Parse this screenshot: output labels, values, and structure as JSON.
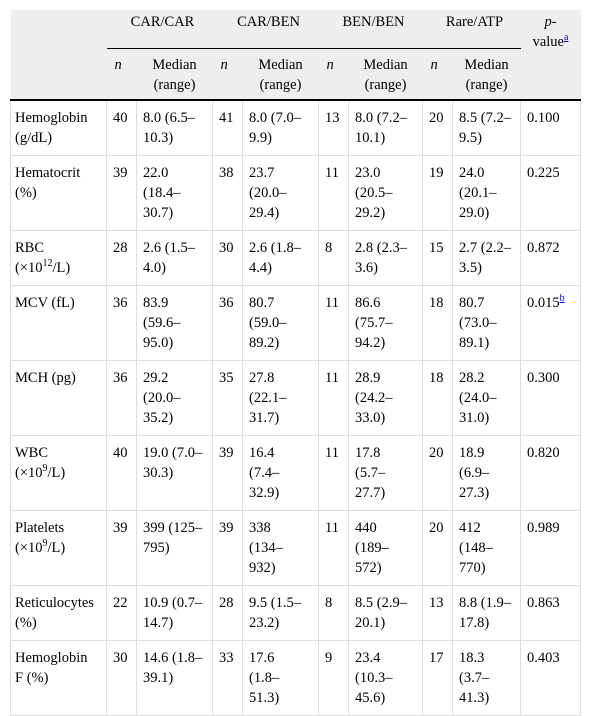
{
  "table": {
    "groups": [
      "CAR/CAR",
      "CAR/BEN",
      "BEN/BEN",
      "Rare/ATP"
    ],
    "n_label": "n",
    "median_label_line1": "Median",
    "median_label_line2": "(range)",
    "pvalue_label_italic": "p",
    "pvalue_label_dash": "-",
    "pvalue_label_rest": "value",
    "pvalue_footnote": "a",
    "rows": [
      {
        "label1": "Hemoglobin",
        "label2": "(g/dL)",
        "cells": [
          [
            "40",
            "8.0 (6.5–",
            "10.3)"
          ],
          [
            "41",
            "8.0 (7.0–",
            "9.9)"
          ],
          [
            "13",
            "8.0 (7.2–",
            "10.1)"
          ],
          [
            "20",
            "8.5 (7.2–",
            "9.5)"
          ]
        ],
        "p": "0.100"
      },
      {
        "label1": "Hematocrit",
        "label2": "(%)",
        "cells": [
          [
            "39",
            "22.0",
            "(18.4–",
            "30.7)"
          ],
          [
            "38",
            "23.7",
            "(20.0–",
            "29.4)"
          ],
          [
            "11",
            "23.0",
            "(20.5–",
            "29.2)"
          ],
          [
            "19",
            "24.0",
            "(20.1–",
            "29.0)"
          ]
        ],
        "p": "0.225"
      },
      {
        "label1": "RBC",
        "label2a": "(×10",
        "label2exp": "12",
        "label2b": "/L)",
        "cells": [
          [
            "28",
            "2.6 (1.5–",
            "4.0)"
          ],
          [
            "30",
            "2.6 (1.8–",
            "4.4)"
          ],
          [
            "8",
            "2.8 (2.3–",
            "3.6)"
          ],
          [
            "15",
            "2.7 (2.2–",
            "3.5)"
          ]
        ],
        "p": "0.872"
      },
      {
        "label1": "MCV (fL)",
        "cells": [
          [
            "36",
            "83.9",
            "(59.6–",
            "95.0)"
          ],
          [
            "36",
            "80.7",
            "(59.0–",
            "89.2)"
          ],
          [
            "11",
            "86.6",
            "(75.7–",
            "94.2)"
          ],
          [
            "18",
            "80.7",
            "(73.0–",
            "89.1)"
          ]
        ],
        "p": "0.015",
        "p_footnote": "b"
      },
      {
        "label1": "MCH (pg)",
        "cells": [
          [
            "36",
            "29.2",
            "(20.0–",
            "35.2)"
          ],
          [
            "35",
            "27.8",
            "(22.1–",
            "31.7)"
          ],
          [
            "11",
            "28.9",
            "(24.2–",
            "33.0)"
          ],
          [
            "18",
            "28.2",
            "(24.0–",
            "31.0)"
          ]
        ],
        "p": "0.300"
      },
      {
        "label1": "WBC",
        "label2a": "(×10",
        "label2exp": "9",
        "label2b": "/L)",
        "cells": [
          [
            "40",
            "19.0 (7.0–",
            "30.3)"
          ],
          [
            "39",
            "16.4",
            "(7.4–",
            "32.9)"
          ],
          [
            "11",
            "17.8",
            "(5.7–",
            "27.7)"
          ],
          [
            "20",
            "18.9",
            "(6.9–",
            "27.3)"
          ]
        ],
        "p": "0.820"
      },
      {
        "label1": "Platelets",
        "label2a": "(×10",
        "label2exp": "9",
        "label2b": "/L)",
        "cells": [
          [
            "39",
            "399 (125–",
            "795)"
          ],
          [
            "39",
            "338",
            "(134–",
            "932)"
          ],
          [
            "11",
            "440",
            "(189–",
            "572)"
          ],
          [
            "20",
            "412",
            "(148–",
            "770)"
          ]
        ],
        "p": "0.989"
      },
      {
        "label1": "Reticulocytes",
        "label2": "(%)",
        "cells": [
          [
            "22",
            "10.9 (0.7–",
            "14.7)"
          ],
          [
            "28",
            "9.5 (1.5–",
            "23.2)"
          ],
          [
            "8",
            "8.5 (2.9–",
            "20.1)"
          ],
          [
            "13",
            "8.8 (1.9–",
            "17.8)"
          ]
        ],
        "p": "0.863"
      },
      {
        "label1": "Hemoglobin",
        "label2": "F (%)",
        "cells": [
          [
            "30",
            "14.6 (1.8–",
            "39.1)"
          ],
          [
            "33",
            "17.6",
            "(1.8–",
            "51.3)"
          ],
          [
            "9",
            "23.4",
            "(10.3–",
            "45.6)"
          ],
          [
            "17",
            "18.3",
            "(3.7–",
            "41.3)"
          ]
        ],
        "p": "0.403"
      }
    ]
  }
}
